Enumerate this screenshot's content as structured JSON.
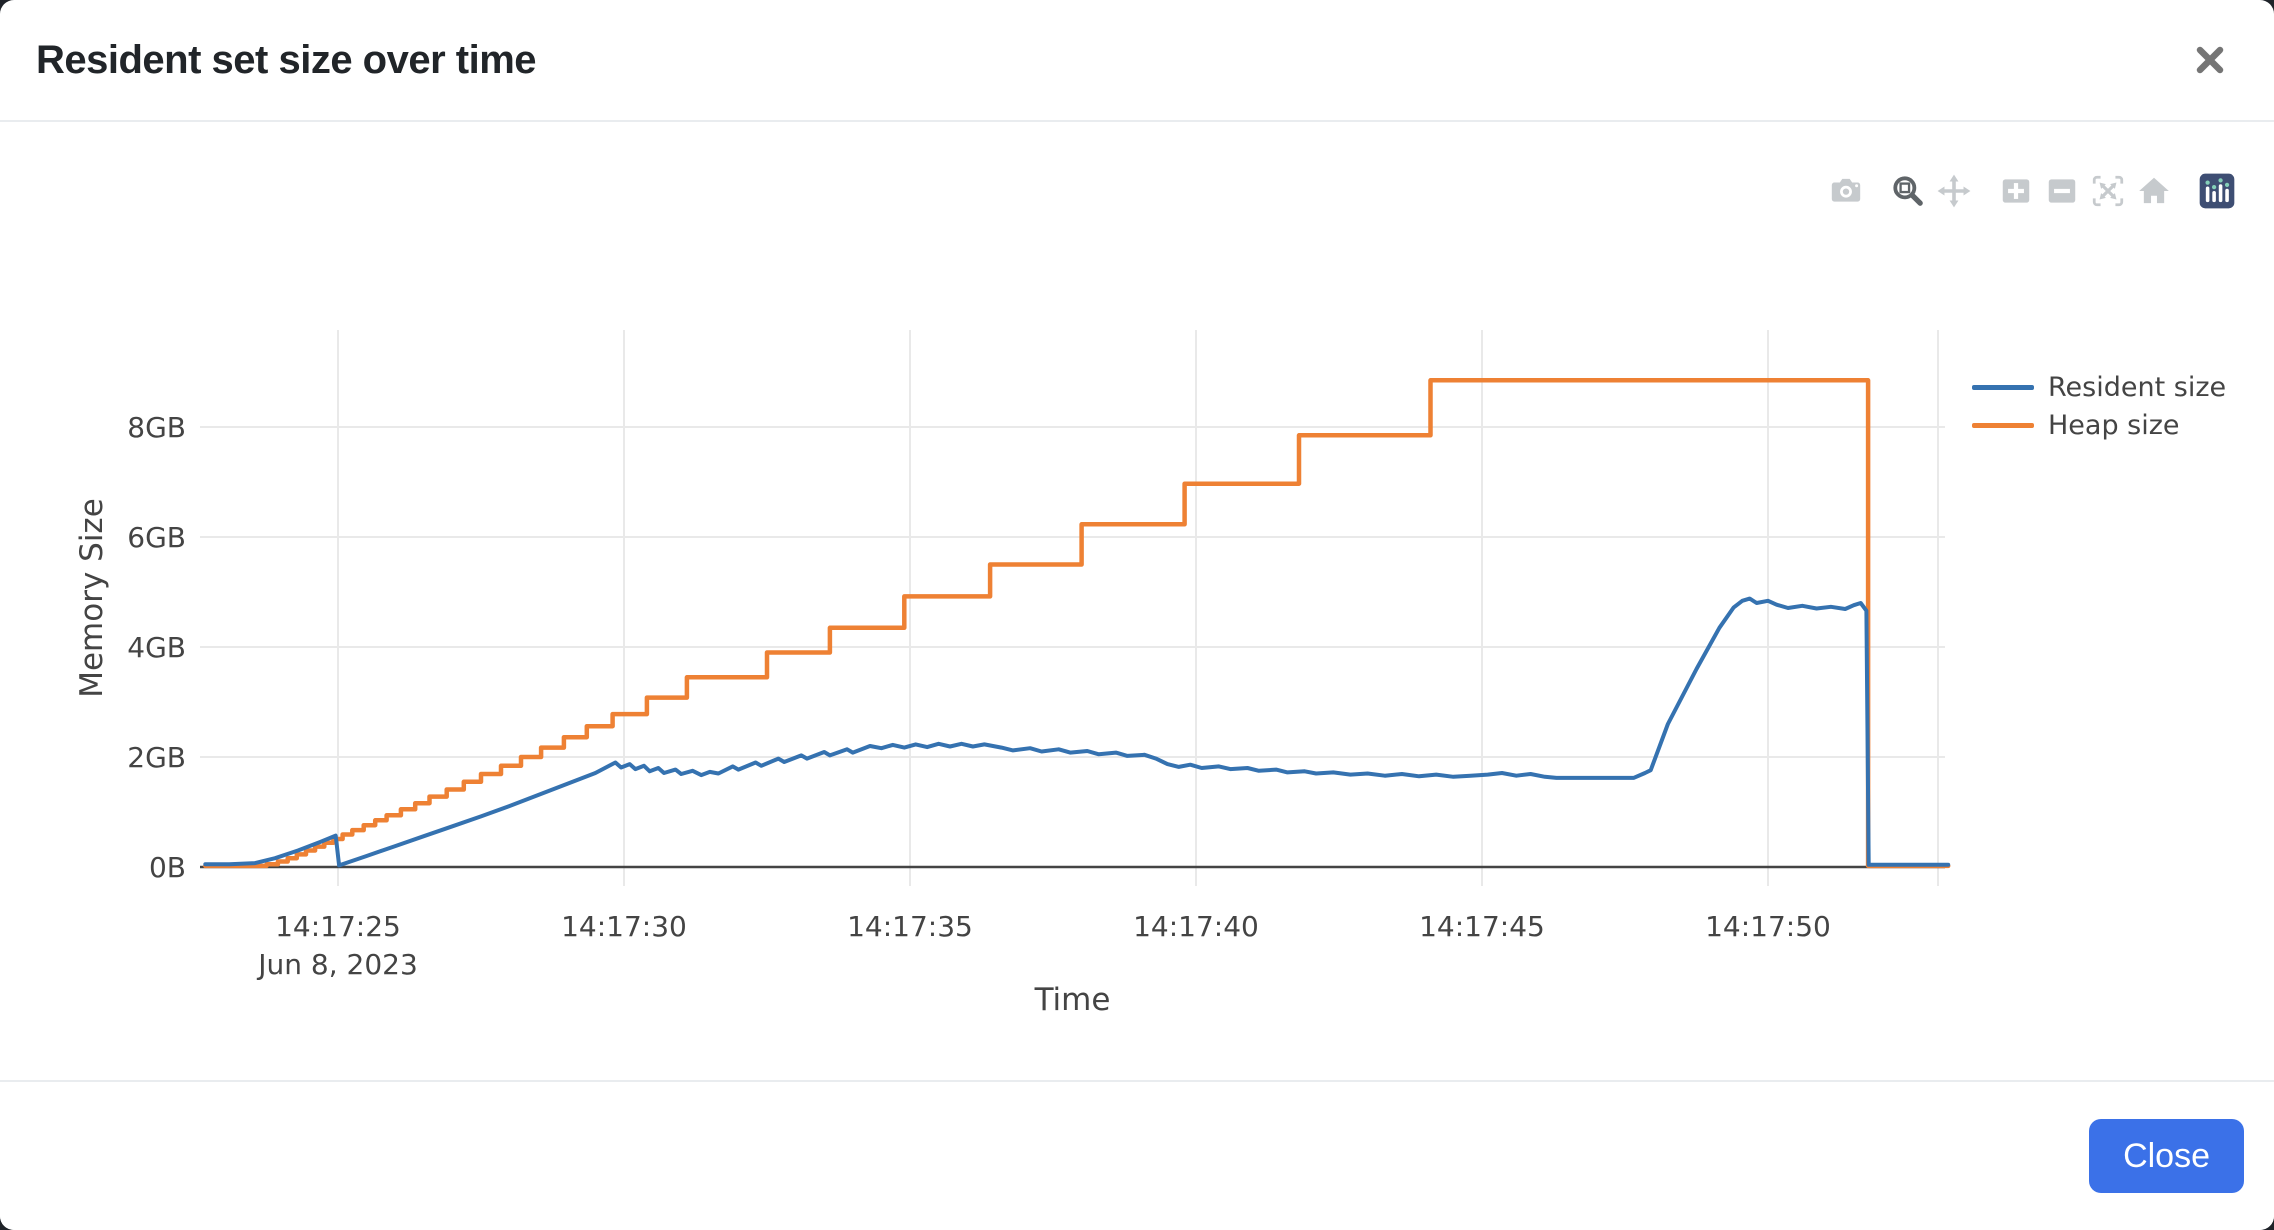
{
  "modal": {
    "title": "Resident set size over time",
    "close_icon": "x-close",
    "footer": {
      "close_label": "Close",
      "close_button_color": "#3b71e8"
    }
  },
  "toolbar": {
    "icons": [
      {
        "name": "camera-icon",
        "action": "download-plot-as-png"
      },
      {
        "name": "zoom-icon",
        "action": "zoom",
        "active": true
      },
      {
        "name": "pan-icon",
        "action": "pan"
      },
      {
        "name": "zoom-in-icon",
        "action": "zoom-in"
      },
      {
        "name": "zoom-out-icon",
        "action": "zoom-out"
      },
      {
        "name": "autoscale-icon",
        "action": "autoscale"
      },
      {
        "name": "home-icon",
        "action": "reset-axes"
      },
      {
        "name": "plotly-logo-icon",
        "action": "produced-with-plotly"
      }
    ]
  },
  "chart_data": {
    "type": "line",
    "xlabel": "Time",
    "ylabel": "Memory Size",
    "x_unit": "seconds after 14:17:00 on Jun 8, 2023",
    "x_range": [
      22.68,
      53.15
    ],
    "y_range_gb": [
      0,
      9.3
    ],
    "grid": true,
    "legend_position": "top-right-outside",
    "x_ticks": [
      {
        "t": 25,
        "label": "14:17:25",
        "sub": "Jun 8, 2023"
      },
      {
        "t": 30,
        "label": "14:17:30"
      },
      {
        "t": 35,
        "label": "14:17:35"
      },
      {
        "t": 40,
        "label": "14:17:40"
      },
      {
        "t": 45,
        "label": "14:17:45"
      },
      {
        "t": 50,
        "label": "14:17:50"
      }
    ],
    "y_ticks": [
      {
        "v": 0,
        "label": "0B"
      },
      {
        "v": 2,
        "label": "2GB"
      },
      {
        "v": 4,
        "label": "4GB"
      },
      {
        "v": 6,
        "label": "6GB"
      },
      {
        "v": 8,
        "label": "8GB"
      }
    ],
    "series": [
      {
        "name": "Resident size",
        "color": "#3572b0",
        "mode": "linear",
        "points": [
          [
            22.68,
            0.05
          ],
          [
            23.1,
            0.05
          ],
          [
            23.55,
            0.07
          ],
          [
            23.9,
            0.16
          ],
          [
            24.3,
            0.3
          ],
          [
            24.7,
            0.46
          ],
          [
            24.96,
            0.57
          ],
          [
            25.02,
            0.03
          ],
          [
            25.5,
            0.2
          ],
          [
            26.0,
            0.38
          ],
          [
            26.5,
            0.56
          ],
          [
            27.0,
            0.74
          ],
          [
            27.5,
            0.92
          ],
          [
            28.0,
            1.11
          ],
          [
            28.5,
            1.31
          ],
          [
            29.0,
            1.51
          ],
          [
            29.5,
            1.71
          ],
          [
            29.85,
            1.9
          ],
          [
            29.95,
            1.81
          ],
          [
            30.1,
            1.87
          ],
          [
            30.2,
            1.78
          ],
          [
            30.35,
            1.84
          ],
          [
            30.45,
            1.74
          ],
          [
            30.6,
            1.8
          ],
          [
            30.7,
            1.71
          ],
          [
            30.9,
            1.77
          ],
          [
            31.0,
            1.69
          ],
          [
            31.2,
            1.75
          ],
          [
            31.35,
            1.67
          ],
          [
            31.5,
            1.73
          ],
          [
            31.65,
            1.7
          ],
          [
            31.9,
            1.83
          ],
          [
            32.0,
            1.77
          ],
          [
            32.3,
            1.9
          ],
          [
            32.4,
            1.84
          ],
          [
            32.7,
            1.97
          ],
          [
            32.8,
            1.91
          ],
          [
            33.1,
            2.03
          ],
          [
            33.2,
            1.97
          ],
          [
            33.5,
            2.09
          ],
          [
            33.6,
            2.03
          ],
          [
            33.9,
            2.14
          ],
          [
            34.0,
            2.08
          ],
          [
            34.3,
            2.2
          ],
          [
            34.5,
            2.16
          ],
          [
            34.7,
            2.22
          ],
          [
            34.9,
            2.17
          ],
          [
            35.1,
            2.23
          ],
          [
            35.3,
            2.18
          ],
          [
            35.5,
            2.24
          ],
          [
            35.7,
            2.19
          ],
          [
            35.9,
            2.24
          ],
          [
            36.1,
            2.19
          ],
          [
            36.3,
            2.23
          ],
          [
            36.6,
            2.17
          ],
          [
            36.8,
            2.12
          ],
          [
            37.1,
            2.16
          ],
          [
            37.3,
            2.1
          ],
          [
            37.6,
            2.14
          ],
          [
            37.8,
            2.08
          ],
          [
            38.1,
            2.11
          ],
          [
            38.3,
            2.05
          ],
          [
            38.6,
            2.08
          ],
          [
            38.8,
            2.02
          ],
          [
            39.1,
            2.04
          ],
          [
            39.3,
            1.97
          ],
          [
            39.5,
            1.87
          ],
          [
            39.7,
            1.82
          ],
          [
            39.9,
            1.86
          ],
          [
            40.1,
            1.8
          ],
          [
            40.4,
            1.83
          ],
          [
            40.6,
            1.78
          ],
          [
            40.9,
            1.8
          ],
          [
            41.1,
            1.75
          ],
          [
            41.4,
            1.77
          ],
          [
            41.6,
            1.72
          ],
          [
            41.9,
            1.74
          ],
          [
            42.1,
            1.7
          ],
          [
            42.4,
            1.72
          ],
          [
            42.7,
            1.68
          ],
          [
            43.0,
            1.7
          ],
          [
            43.3,
            1.66
          ],
          [
            43.6,
            1.69
          ],
          [
            43.9,
            1.65
          ],
          [
            44.2,
            1.68
          ],
          [
            44.5,
            1.64
          ],
          [
            44.8,
            1.66
          ],
          [
            45.1,
            1.68
          ],
          [
            45.35,
            1.71
          ],
          [
            45.6,
            1.66
          ],
          [
            45.85,
            1.69
          ],
          [
            46.1,
            1.64
          ],
          [
            46.3,
            1.62
          ],
          [
            47.65,
            1.62
          ],
          [
            47.85,
            1.71
          ],
          [
            47.95,
            1.76
          ],
          [
            48.25,
            2.6
          ],
          [
            48.75,
            3.6
          ],
          [
            49.15,
            4.35
          ],
          [
            49.4,
            4.72
          ],
          [
            49.55,
            4.84
          ],
          [
            49.68,
            4.88
          ],
          [
            49.8,
            4.8
          ],
          [
            50.0,
            4.84
          ],
          [
            50.15,
            4.77
          ],
          [
            50.35,
            4.71
          ],
          [
            50.6,
            4.75
          ],
          [
            50.85,
            4.7
          ],
          [
            51.1,
            4.73
          ],
          [
            51.35,
            4.69
          ],
          [
            51.5,
            4.76
          ],
          [
            51.62,
            4.8
          ],
          [
            51.72,
            4.66
          ],
          [
            51.76,
            0.04
          ],
          [
            52.2,
            0.04
          ],
          [
            53.15,
            0.04
          ]
        ]
      },
      {
        "name": "Heap size",
        "color": "#ee8134",
        "mode": "step-hv",
        "points": [
          [
            22.68,
            0.02
          ],
          [
            23.75,
            0.05
          ],
          [
            23.95,
            0.1
          ],
          [
            24.12,
            0.16
          ],
          [
            24.28,
            0.23
          ],
          [
            24.44,
            0.3
          ],
          [
            24.6,
            0.37
          ],
          [
            24.76,
            0.44
          ],
          [
            24.92,
            0.51
          ],
          [
            25.08,
            0.59
          ],
          [
            25.25,
            0.67
          ],
          [
            25.45,
            0.76
          ],
          [
            25.65,
            0.85
          ],
          [
            25.85,
            0.94
          ],
          [
            26.1,
            1.05
          ],
          [
            26.35,
            1.16
          ],
          [
            26.6,
            1.28
          ],
          [
            26.9,
            1.41
          ],
          [
            27.2,
            1.55
          ],
          [
            27.5,
            1.69
          ],
          [
            27.85,
            1.84
          ],
          [
            28.2,
            2.0
          ],
          [
            28.55,
            2.17
          ],
          [
            28.95,
            2.36
          ],
          [
            29.35,
            2.56
          ],
          [
            29.8,
            2.78
          ],
          [
            30.4,
            3.08
          ],
          [
            31.1,
            3.45
          ],
          [
            32.5,
            3.9
          ],
          [
            33.6,
            4.35
          ],
          [
            34.9,
            4.92
          ],
          [
            36.4,
            5.5
          ],
          [
            38.0,
            6.23
          ],
          [
            39.8,
            6.97
          ],
          [
            41.8,
            7.85
          ],
          [
            44.1,
            8.85
          ],
          [
            51.75,
            0.02
          ],
          [
            53.15,
            0.02
          ]
        ]
      }
    ]
  },
  "colors": {
    "grid": "#e9e9e9",
    "zero_line": "#444444",
    "tick_text": "#444444",
    "divider": "#e9ecef",
    "backdrop": "#1f2329",
    "modebar_inactive": "#c6cacd",
    "modebar_active": "#5f6468",
    "plotly_logo_bg": "#3e4e73",
    "plotly_logo_dot": "#84cfb8"
  }
}
